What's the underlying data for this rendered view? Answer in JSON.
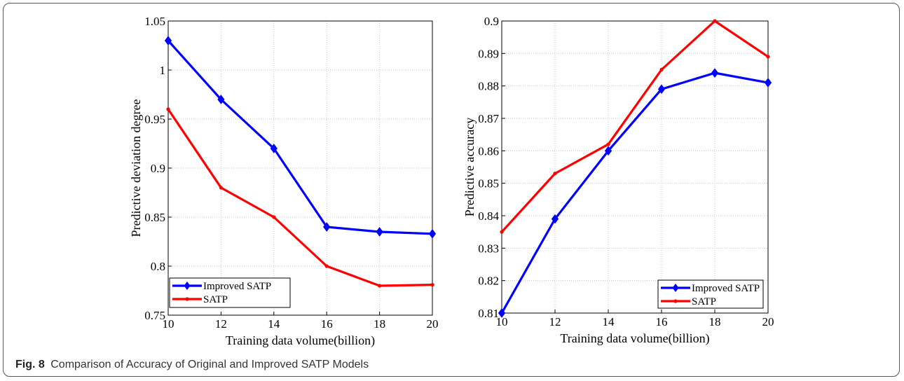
{
  "caption": {
    "figure_label": "Fig. 8",
    "text": "Comparison of Accuracy of Original and Improved SATP Models"
  },
  "colors": {
    "improved": "#0000ff",
    "satp": "#ff0000",
    "grid": "#c8c8c8",
    "axis": "#000000"
  },
  "chart_data": [
    {
      "type": "line",
      "title": "",
      "xlabel": "Training data volume(billion)",
      "ylabel": "Predictive deviation degree",
      "x": [
        10,
        12,
        14,
        16,
        18,
        20
      ],
      "xlim": [
        10,
        20
      ],
      "ylim": [
        0.75,
        1.05
      ],
      "xticks": [
        "10",
        "12",
        "14",
        "16",
        "18",
        "20"
      ],
      "yticks": [
        "0.75",
        "0.8",
        "0.85",
        "0.9",
        "0.95",
        "1",
        "1.05"
      ],
      "grid": true,
      "legend_position": "bottom-left",
      "series": [
        {
          "name": "Improved SATP",
          "marker": "diamond",
          "color": "#0000ff",
          "values": [
            1.03,
            0.97,
            0.92,
            0.84,
            0.835,
            0.833
          ]
        },
        {
          "name": "SATP",
          "marker": "dot",
          "color": "#ff0000",
          "values": [
            0.96,
            0.88,
            0.85,
            0.8,
            0.78,
            0.781
          ]
        }
      ]
    },
    {
      "type": "line",
      "title": "",
      "xlabel": "Training data volume(billion)",
      "ylabel": "Predictive accuracy",
      "x": [
        10,
        12,
        14,
        16,
        18,
        20
      ],
      "xlim": [
        10,
        20
      ],
      "ylim": [
        0.81,
        0.9
      ],
      "xticks": [
        "10",
        "12",
        "14",
        "16",
        "18",
        "20"
      ],
      "yticks": [
        "0.81",
        "0.82",
        "0.83",
        "0.84",
        "0.85",
        "0.86",
        "0.87",
        "0.88",
        "0.89",
        "0.9"
      ],
      "grid": true,
      "legend_position": "bottom-right",
      "series": [
        {
          "name": "Improved SATP",
          "marker": "diamond",
          "color": "#0000ff",
          "values": [
            0.81,
            0.839,
            0.86,
            0.879,
            0.884,
            0.881
          ]
        },
        {
          "name": "SATP",
          "marker": "dot",
          "color": "#ff0000",
          "values": [
            0.835,
            0.853,
            0.862,
            0.885,
            0.9,
            0.889
          ]
        }
      ]
    }
  ]
}
